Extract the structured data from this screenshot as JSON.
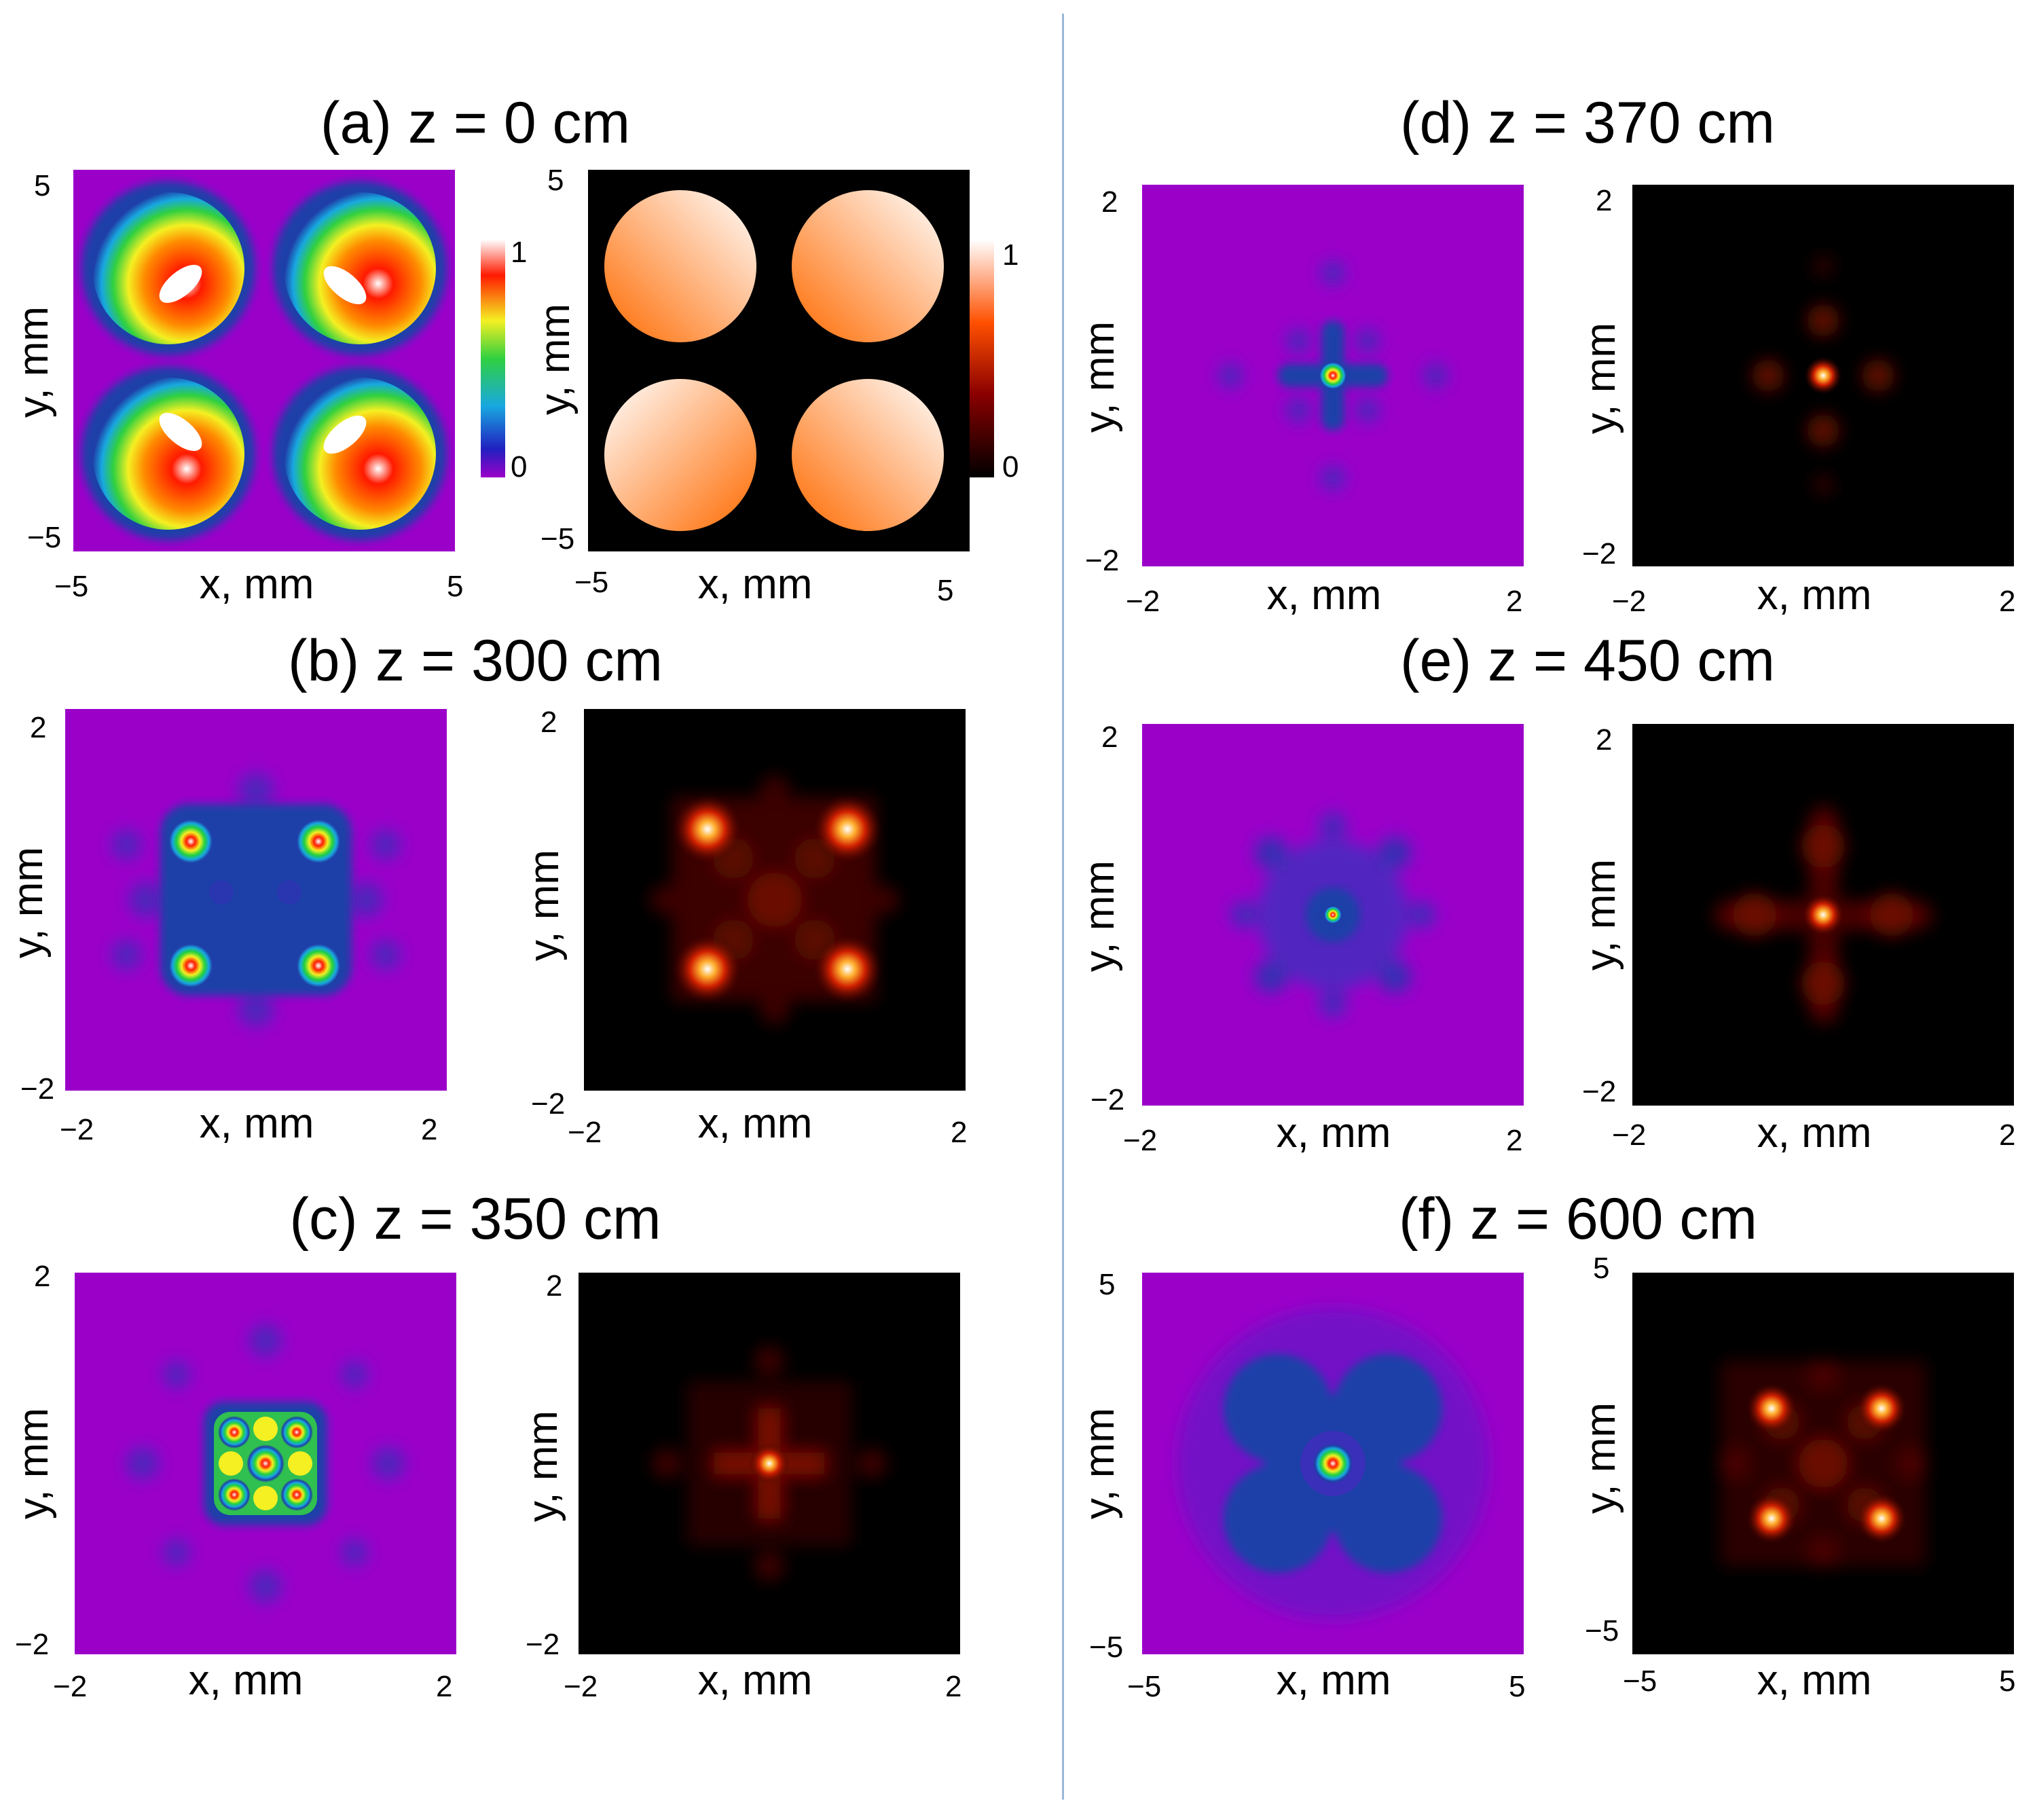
{
  "labels": {
    "xlabel": "x, mm",
    "ylabel": "y, mm"
  },
  "colors": {
    "intensity_background": "#9b00c9",
    "intensity_low": "#1f3fa8",
    "intensity_mid": "#f2f022",
    "intensity_high": "#ff1a00",
    "intensity_peak": "#ffffff",
    "hot_background": "#000000",
    "hot_mid": "#c42a00",
    "hot_high": "#ff8a2a",
    "divider": "#9bb6d8"
  },
  "colorbar_intensity": {
    "max_label": "1",
    "min_label": "0",
    "colormap": "jet-like"
  },
  "colorbar_hot": {
    "max_label": "1",
    "min_label": "0",
    "colormap": "hot"
  },
  "panels": [
    {
      "title": "(a) z = 0 cm",
      "range": [
        -5,
        5
      ],
      "ticks": [
        "5",
        "−5",
        "−5",
        "5"
      ],
      "pattern": "four-gaussian-rings"
    },
    {
      "title": "(b) z = 300 cm",
      "range": [
        -2,
        2
      ],
      "ticks": [
        "2",
        "−2",
        "−2",
        "2"
      ],
      "pattern": "four-peaks-square"
    },
    {
      "title": "(c) z = 350 cm",
      "range": [
        -2,
        2
      ],
      "ticks": [
        "2",
        "−2",
        "−2",
        "2"
      ],
      "pattern": "central-peak-lattice"
    },
    {
      "title": "(d) z = 370 cm",
      "range": [
        -2,
        2
      ],
      "ticks": [
        "2",
        "−2",
        "−2",
        "2"
      ],
      "pattern": "central-peak-cross"
    },
    {
      "title": "(e) z = 450 cm",
      "range": [
        -2,
        2
      ],
      "ticks": [
        "2",
        "−2",
        "−2",
        "2"
      ],
      "pattern": "central-peak-ring"
    },
    {
      "title": "(f) z = 600 cm",
      "range": [
        -5,
        5
      ],
      "ticks": [
        "5",
        "−5",
        "−5",
        "5"
      ],
      "pattern": "central-peak-four-lobes"
    }
  ]
}
